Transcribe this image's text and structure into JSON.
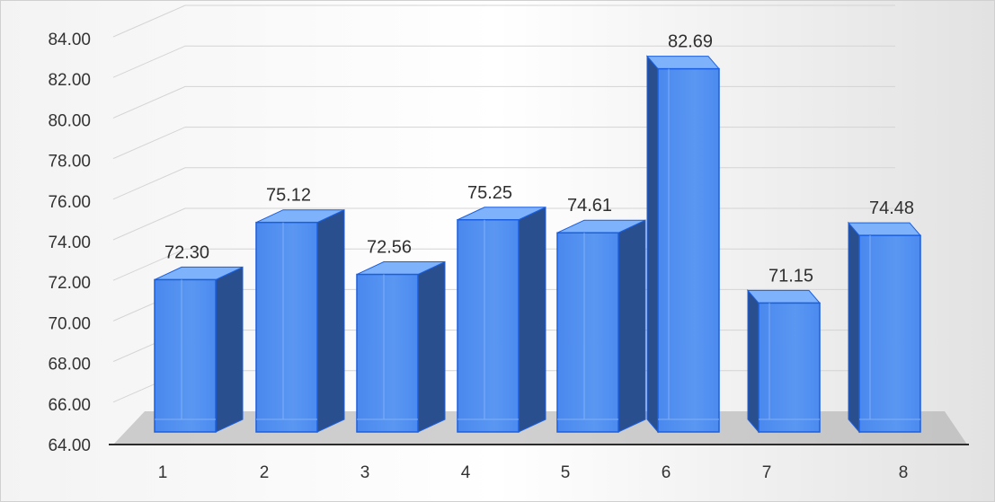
{
  "chart_data": {
    "type": "bar",
    "style": "3d-column",
    "categories": [
      "1",
      "2",
      "3",
      "4",
      "5",
      "6",
      "7",
      "8"
    ],
    "values": [
      72.3,
      75.12,
      72.56,
      75.25,
      74.61,
      82.69,
      71.15,
      74.48
    ],
    "data_labels": [
      "72.30",
      "75.12",
      "72.56",
      "75.25",
      "74.61",
      "82.69",
      "71.15",
      "74.48"
    ],
    "ylim": [
      64,
      84
    ],
    "yticks": [
      "64.00",
      "66.00",
      "68.00",
      "70.00",
      "72.00",
      "74.00",
      "76.00",
      "78.00",
      "80.00",
      "82.00",
      "84.00"
    ],
    "grid": true,
    "legend": "none",
    "colors": {
      "bar_front": "#4f8ff0",
      "bar_side": "#2a4f8e",
      "bar_top": "#7eb2fb",
      "bar_edge": "#1b5fe0",
      "floor": "#a9a9a9",
      "gridline": "#d4d4d4",
      "axis": "#2b2b2b"
    }
  }
}
